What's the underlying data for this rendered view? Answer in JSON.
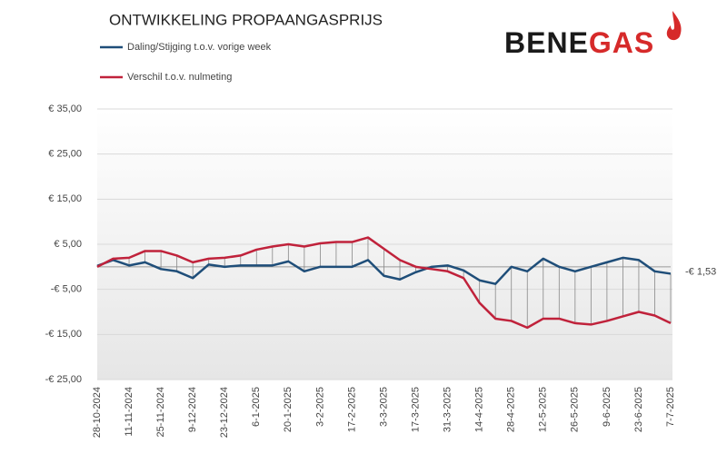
{
  "chart_data": {
    "type": "line",
    "title": "ONTWIKKELING PROPAANGASPRIJS",
    "logo": [
      "BENE",
      "GAS"
    ],
    "categories": [
      "28-10-2024",
      null,
      "11-11-2024",
      null,
      "25-11-2024",
      null,
      "9-12-2024",
      null,
      "23-12-2024",
      null,
      "6-1-2025",
      null,
      "20-1-2025",
      null,
      "3-2-2025",
      null,
      "17-2-2025",
      null,
      "3-3-2025",
      null,
      "17-3-2025",
      null,
      "31-3-2025",
      null,
      "14-4-2025",
      null,
      "28-4-2025",
      null,
      "12-5-2025",
      null,
      "26-5-2025",
      null,
      "9-6-2025",
      null,
      "23-6-2025",
      null,
      "7-7-2025"
    ],
    "series": [
      {
        "name": "Daling/Stijging t.o.v. vorige week",
        "color": "#1f4e79",
        "values": [
          0.2,
          1.5,
          0.3,
          1,
          -0.5,
          -1,
          -2.5,
          0.5,
          0,
          0.3,
          0.3,
          0.3,
          1.2,
          -1,
          0,
          0,
          0,
          1.5,
          -2,
          -2.8,
          -1.2,
          0,
          0.3,
          -0.8,
          -3,
          -3.8,
          0,
          -1,
          1.8,
          0,
          -1,
          0,
          1,
          2,
          1.5,
          -1,
          -1.53
        ]
      },
      {
        "name": "Verschil t.o.v. nulmeting",
        "color": "#c0223b",
        "values": [
          0,
          1.8,
          2,
          3.5,
          3.5,
          2.5,
          1,
          1.8,
          2,
          2.5,
          3.8,
          4.5,
          5,
          4.5,
          5.2,
          5.5,
          5.5,
          6.5,
          4,
          1.5,
          0,
          -0.5,
          -1,
          -2.5,
          -8,
          -11.5,
          -12,
          -13.5,
          -11.5,
          -11.5,
          -12.5,
          -12.8,
          -12,
          -11,
          -10,
          -10.8,
          -12.5
        ]
      }
    ],
    "annotations": [
      {
        "text": "-€ 1,53",
        "series": 0,
        "index": 36
      }
    ],
    "ylim": [
      -25,
      35
    ],
    "yticks": [
      {
        "value": -25,
        "label": "-€ 25,00"
      },
      {
        "value": -15,
        "label": "-€ 15,00"
      },
      {
        "value": -5,
        "label": "-€ 5,00"
      },
      {
        "value": 5,
        "label": "€ 5,00"
      },
      {
        "value": 15,
        "label": "€ 15,00"
      },
      {
        "value": 25,
        "label": "€ 25,00"
      },
      {
        "value": 35,
        "label": "€ 35,00"
      }
    ],
    "grid": true,
    "hilo_lines": true
  }
}
